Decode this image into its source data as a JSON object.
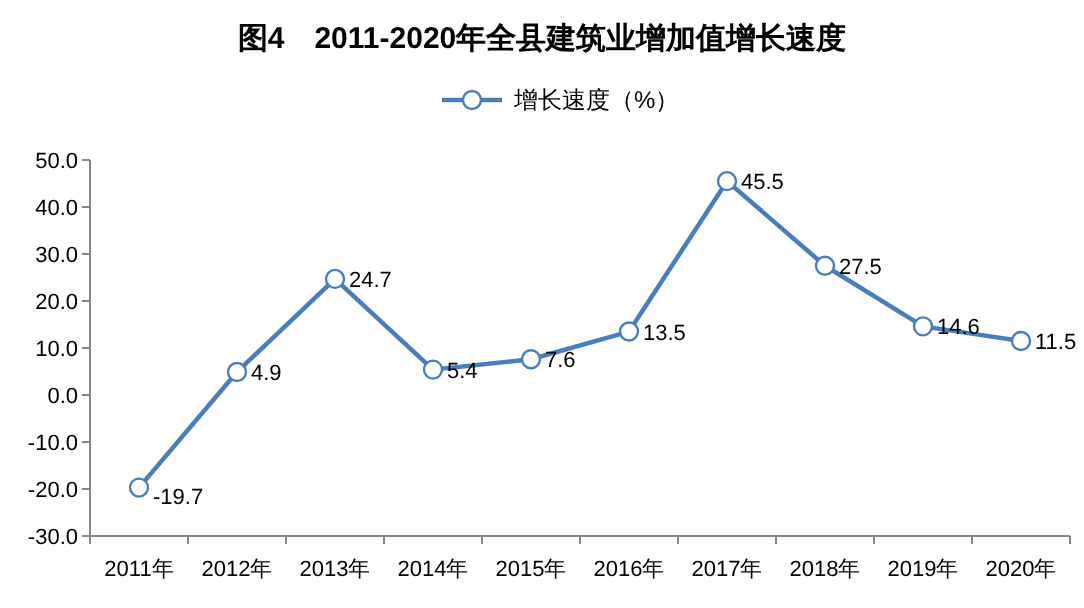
{
  "chart_data": {
    "type": "line",
    "title": "图4　2011-2020年全县建筑业增加值增长速度",
    "categories": [
      "2011年",
      "2012年",
      "2013年",
      "2014年",
      "2015年",
      "2016年",
      "2017年",
      "2018年",
      "2019年",
      "2020年"
    ],
    "series": [
      {
        "name": "增长速度（%）",
        "color": "#4a7ebb",
        "values": [
          -19.7,
          4.9,
          24.7,
          5.4,
          7.6,
          13.5,
          45.5,
          27.5,
          14.6,
          11.5
        ]
      }
    ],
    "ylim": [
      -30,
      50
    ],
    "yticks": [
      {
        "value": -30,
        "label": "-30.0"
      },
      {
        "value": -20,
        "label": "-20.0"
      },
      {
        "value": -10,
        "label": "-10.0"
      },
      {
        "value": 0,
        "label": "0.0"
      },
      {
        "value": 10,
        "label": "10.0"
      },
      {
        "value": 20,
        "label": "20.0"
      },
      {
        "value": 30,
        "label": "30.0"
      },
      {
        "value": 40,
        "label": "40.0"
      },
      {
        "value": 50,
        "label": "50.0"
      }
    ],
    "legend": "top",
    "marker": "circle",
    "line_style": "solid",
    "data_labels": true,
    "grid": false
  }
}
